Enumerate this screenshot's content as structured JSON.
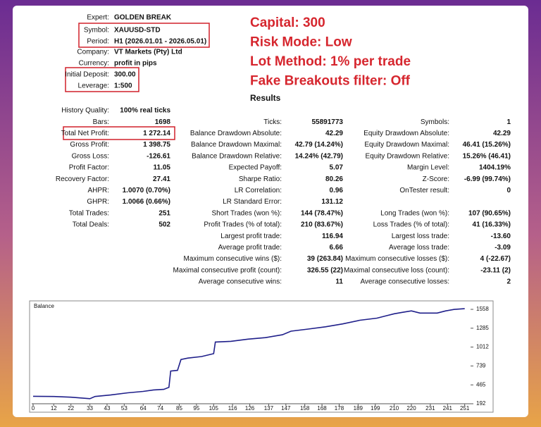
{
  "settings": [
    {
      "label": "Expert:",
      "value": "GOLDEN BREAK"
    },
    {
      "label": "Symbol:",
      "value": "XAUUSD-STD"
    },
    {
      "label": "Period:",
      "value": "H1 (2026.01.01 - 2026.05.01)"
    },
    {
      "label": "Company:",
      "value": "VT Markets (Pty) Ltd"
    },
    {
      "label": "Currency:",
      "value": "profit in pips"
    },
    {
      "label": "Initial Deposit:",
      "value": "300.00"
    },
    {
      "label": "Leverage:",
      "value": "1:500"
    }
  ],
  "highlights": [
    "Capital: 300",
    "Risk Mode: Low",
    "Lot Method: 1% per trade",
    "Fake Breakouts filter: Off"
  ],
  "results_title": "Results",
  "stats": {
    "left": [
      {
        "label": "History Quality:",
        "value": "100% real ticks"
      },
      {
        "label": "Bars:",
        "value": "1698"
      },
      {
        "label": "Total Net Profit:",
        "value": "1 272.14"
      },
      {
        "label": "Gross Profit:",
        "value": "1 398.75"
      },
      {
        "label": "Gross Loss:",
        "value": "-126.61"
      },
      {
        "label": "Profit Factor:",
        "value": "11.05"
      },
      {
        "label": "Recovery Factor:",
        "value": "27.41"
      },
      {
        "label": "AHPR:",
        "value": "1.0070 (0.70%)"
      },
      {
        "label": "GHPR:",
        "value": "1.0066 (0.66%)"
      },
      {
        "label": "Total Trades:",
        "value": "251"
      },
      {
        "label": "Total Deals:",
        "value": "502"
      }
    ],
    "middle": [
      {
        "label": "Ticks:",
        "value": "55891773"
      },
      {
        "label": "Balance Drawdown Absolute:",
        "value": "42.29"
      },
      {
        "label": "Balance Drawdown Maximal:",
        "value": "42.79 (14.24%)"
      },
      {
        "label": "Balance Drawdown Relative:",
        "value": "14.24% (42.79)"
      },
      {
        "label": "Expected Payoff:",
        "value": "5.07"
      },
      {
        "label": "Sharpe Ratio:",
        "value": "80.26"
      },
      {
        "label": "LR Correlation:",
        "value": "0.96"
      },
      {
        "label": "LR Standard Error:",
        "value": "131.12"
      },
      {
        "label": "Short Trades (won %):",
        "value": "144 (78.47%)"
      },
      {
        "label": "Profit Trades (% of total):",
        "value": "210 (83.67%)"
      },
      {
        "label": "Largest profit trade:",
        "value": "116.94"
      },
      {
        "label": "Average profit trade:",
        "value": "6.66"
      },
      {
        "label": "Maximum consecutive wins ($):",
        "value": "39 (263.84)"
      },
      {
        "label": "Maximal consecutive profit (count):",
        "value": "326.55 (22)"
      },
      {
        "label": "Average consecutive wins:",
        "value": "11"
      }
    ],
    "right": [
      {
        "label": "Symbols:",
        "value": "1"
      },
      {
        "label": "Equity Drawdown Absolute:",
        "value": "42.29"
      },
      {
        "label": "Equity Drawdown Maximal:",
        "value": "46.41 (15.26%)"
      },
      {
        "label": "Equity Drawdown Relative:",
        "value": "15.26% (46.41)"
      },
      {
        "label": "Margin Level:",
        "value": "1404.19%"
      },
      {
        "label": "Z-Score:",
        "value": "-6.99 (99.74%)"
      },
      {
        "label": "OnTester result:",
        "value": "0"
      },
      {
        "label": "Long Trades (won %):",
        "value": "107 (90.65%)"
      },
      {
        "label": "Loss Trades (% of total):",
        "value": "41 (16.33%)"
      },
      {
        "label": "Largest loss trade:",
        "value": "-13.60"
      },
      {
        "label": "Average loss trade:",
        "value": "-3.09"
      },
      {
        "label": "Maximum consecutive losses ($):",
        "value": "4 (-22.67)"
      },
      {
        "label": "Maximal consecutive loss (count):",
        "value": "-23.11 (2)"
      },
      {
        "label": "Average consecutive losses:",
        "value": "2"
      }
    ]
  },
  "chart_data": {
    "type": "line",
    "title": "Balance",
    "color": "#1f1f8a",
    "x": [
      0,
      12,
      22,
      33,
      36,
      45,
      55,
      64,
      70,
      76,
      79,
      80,
      84,
      86,
      90,
      98,
      105,
      106,
      115,
      125,
      135,
      145,
      150,
      160,
      170,
      180,
      190,
      200,
      205,
      210,
      215,
      220,
      225,
      235,
      240,
      245,
      251
    ],
    "values": [
      300,
      297,
      287,
      265,
      297,
      318,
      350,
      370,
      392,
      400,
      430,
      665,
      675,
      832,
      853,
      875,
      917,
      1085,
      1095,
      1127,
      1148,
      1190,
      1242,
      1273,
      1305,
      1347,
      1400,
      1431,
      1462,
      1494,
      1515,
      1536,
      1504,
      1504,
      1536,
      1557,
      1567
    ],
    "xlim": [
      0,
      254
    ],
    "ylim": [
      192,
      1650
    ],
    "xticks": [
      0,
      12,
      22,
      33,
      43,
      53,
      64,
      74,
      85,
      95,
      105,
      116,
      126,
      137,
      147,
      158,
      168,
      178,
      189,
      199,
      210,
      220,
      231,
      241,
      251
    ],
    "yticks": [
      192,
      465,
      739,
      1012,
      1285,
      1558
    ]
  }
}
